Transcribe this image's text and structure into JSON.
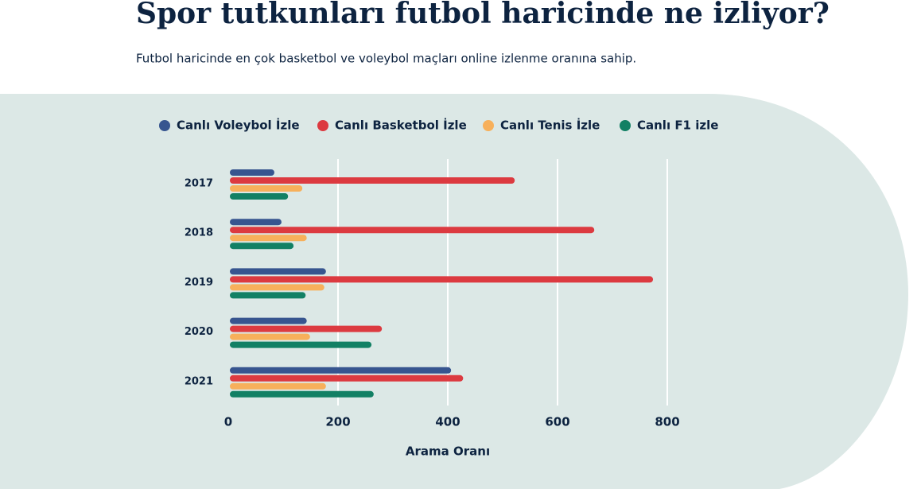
{
  "chart_data": {
    "type": "bar",
    "orientation": "horizontal",
    "title": "Spor tutkunları futbol haricinde ne izliyor?",
    "subtitle": "Futbol haricinde en çok basketbol ve voleybol maçları online izlenme oranına sahip.",
    "x_label": "Arama Oranı",
    "categories": [
      "2017",
      "2018",
      "2019",
      "2020",
      "2021"
    ],
    "series": [
      {
        "name": "Canlı Voleybol İzle",
        "color": "#37558f",
        "values": [
          84,
          97,
          178,
          143,
          406
        ]
      },
      {
        "name": "Canlı Basketbol İzle",
        "color": "#dc3a40",
        "values": [
          522,
          667,
          774,
          280,
          428
        ]
      },
      {
        "name": "Canlı Tenis İzle",
        "color": "#f7b05b",
        "values": [
          135,
          143,
          175,
          149,
          178
        ]
      },
      {
        "name": "Canlı F1 izle",
        "color": "#128064",
        "values": [
          109,
          119,
          141,
          261,
          265
        ]
      }
    ],
    "xlim": [
      0,
      800
    ],
    "xticks": [
      0,
      200,
      400,
      600,
      800
    ],
    "grid": true
  }
}
